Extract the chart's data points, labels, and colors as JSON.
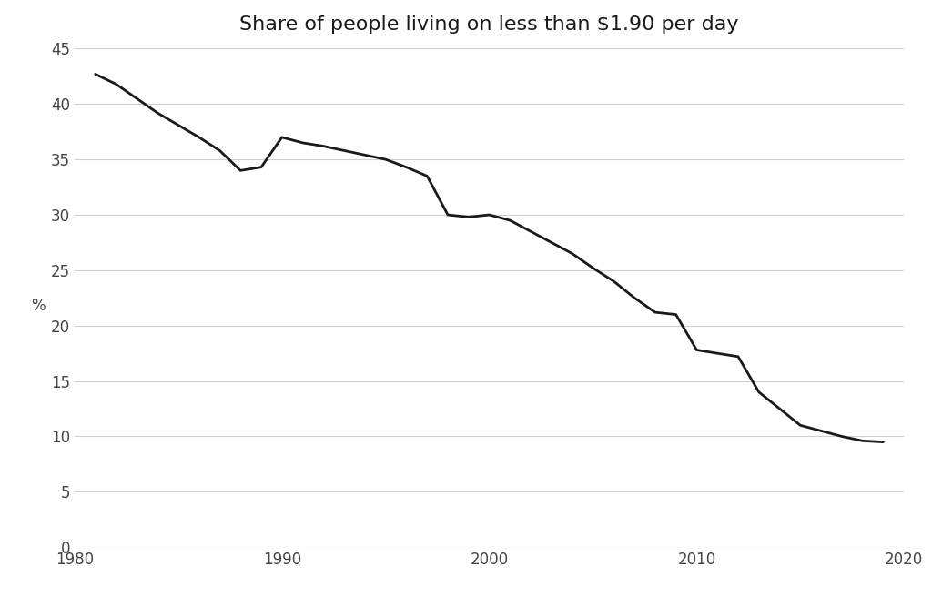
{
  "title": "Share of people living on less than $1.90 per day",
  "ylabel": "%",
  "background_color": "#ffffff",
  "line_color": "#1a1a1a",
  "line_width": 2.0,
  "xlim": [
    1980,
    2020
  ],
  "ylim": [
    0,
    45
  ],
  "xtick_positions": [
    1980,
    1990,
    2000,
    2010,
    2020
  ],
  "xtick_labels": [
    "1980",
    "1990",
    "2000",
    "2010",
    "2020"
  ],
  "yticks": [
    0,
    5,
    10,
    15,
    20,
    25,
    30,
    35,
    40,
    45
  ],
  "grid_color": "#d0d0d0",
  "title_fontsize": 16,
  "axis_fontsize": 12,
  "x": [
    1981,
    1982,
    1983,
    1984,
    1985,
    1986,
    1987,
    1988,
    1989,
    1990,
    1991,
    1992,
    1993,
    1994,
    1995,
    1996,
    1997,
    1998,
    1999,
    2000,
    2001,
    2002,
    2003,
    2004,
    2005,
    2006,
    2007,
    2008,
    2009,
    2010,
    2011,
    2012,
    2013,
    2014,
    2015,
    2016,
    2017,
    2018,
    2019
  ],
  "y": [
    42.7,
    41.8,
    40.5,
    39.2,
    38.1,
    37.0,
    35.8,
    34.0,
    34.3,
    37.0,
    36.5,
    36.2,
    35.8,
    35.4,
    35.0,
    34.3,
    33.5,
    30.0,
    29.8,
    30.0,
    29.5,
    28.5,
    27.5,
    26.5,
    25.2,
    24.0,
    22.5,
    21.2,
    21.0,
    17.8,
    17.5,
    17.2,
    14.0,
    12.5,
    11.0,
    10.5,
    10.0,
    9.6,
    9.5
  ]
}
